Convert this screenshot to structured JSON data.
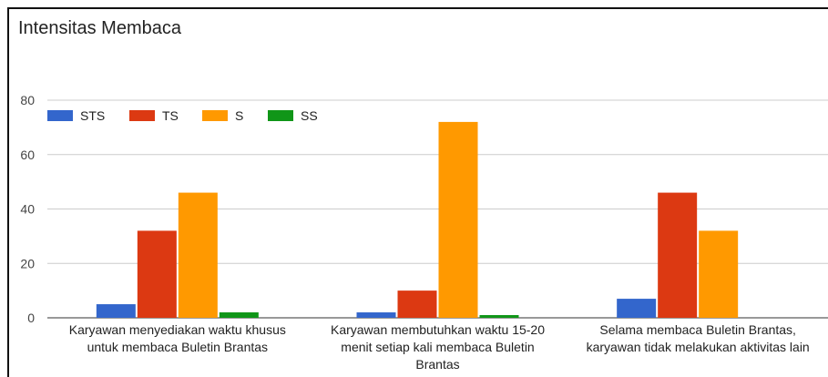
{
  "chart_data": {
    "type": "bar",
    "title": "Intensitas Membaca",
    "categories": [
      [
        "Karyawan menyediakan waktu khusus",
        "untuk membaca Buletin Brantas"
      ],
      [
        "Karyawan membutuhkan waktu 15-20",
        "menit setiap kali membaca Buletin",
        "Brantas"
      ],
      [
        "Selama membaca Buletin Brantas,",
        "karyawan tidak melakukan aktivitas lain"
      ]
    ],
    "series": [
      {
        "name": "STS",
        "color": "#3366cc",
        "values": [
          5,
          2,
          7
        ]
      },
      {
        "name": "TS",
        "color": "#dc3912",
        "values": [
          32,
          10,
          46
        ]
      },
      {
        "name": "S",
        "color": "#ff9900",
        "values": [
          46,
          72,
          32
        ]
      },
      {
        "name": "SS",
        "color": "#109618",
        "values": [
          2,
          1,
          0
        ]
      }
    ],
    "yticks": [
      0,
      20,
      40,
      60,
      80
    ],
    "ylim": [
      0,
      80
    ],
    "grid": true,
    "legend": "top-left"
  }
}
